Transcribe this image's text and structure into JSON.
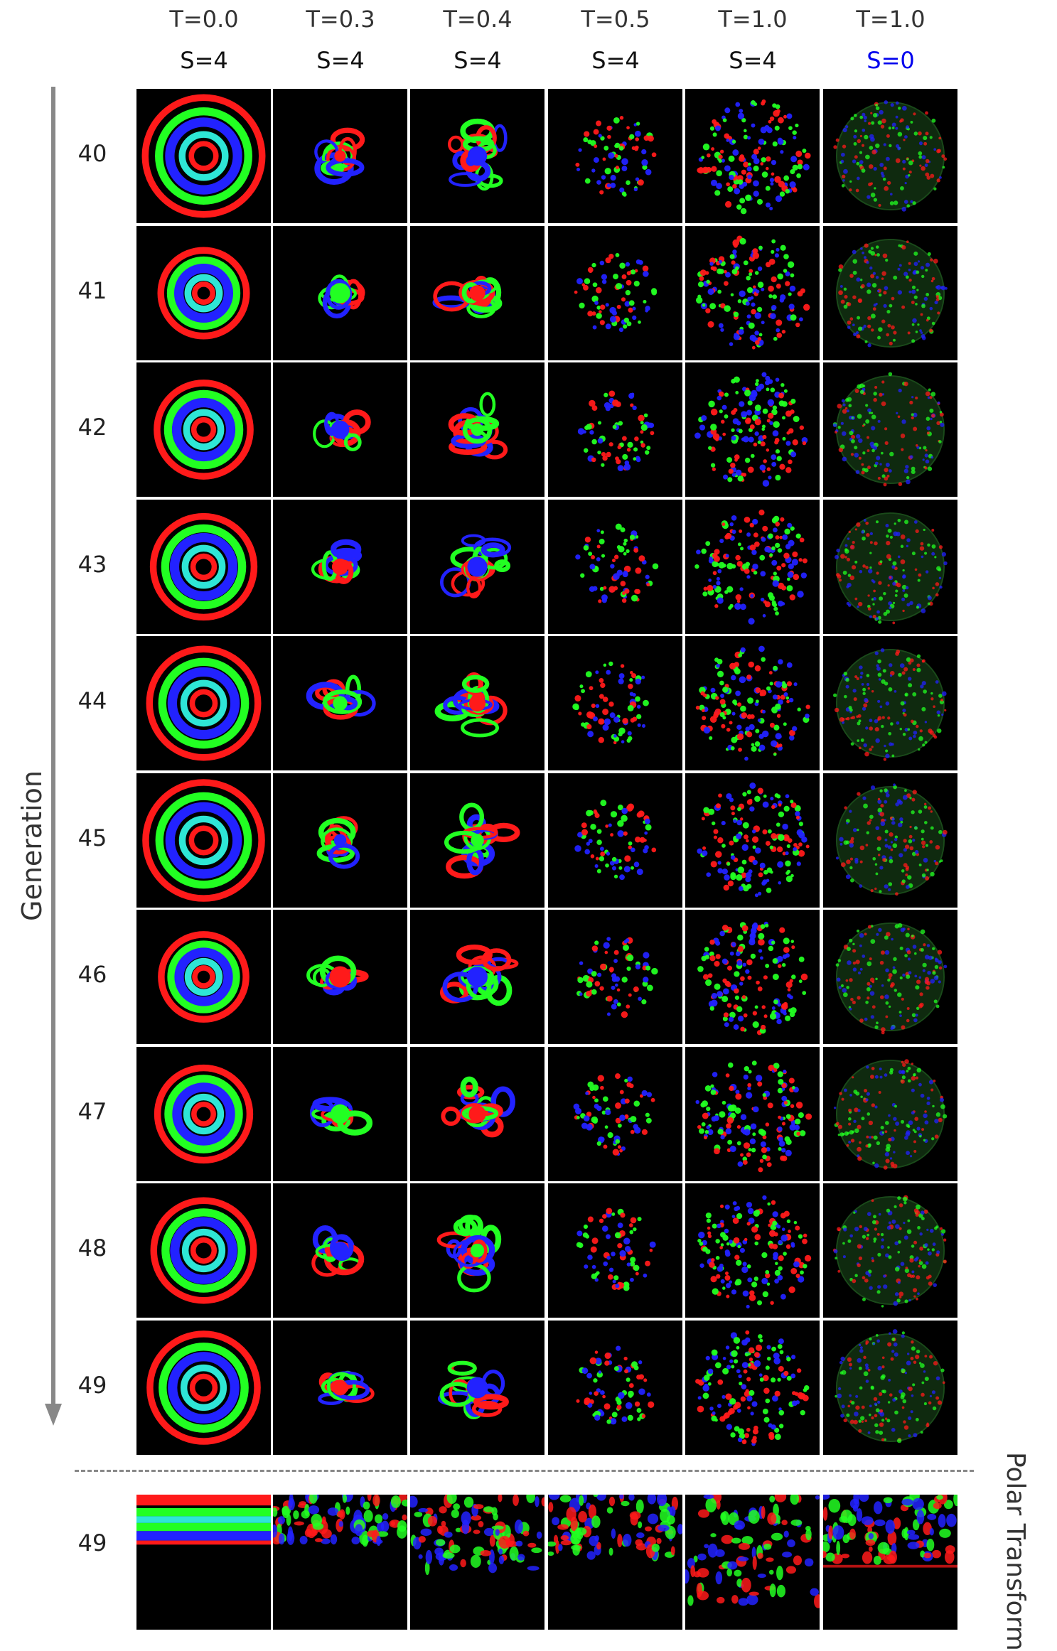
{
  "columns": [
    {
      "temperature": "T=0.0",
      "s_value": "S=4",
      "s_highlight": false
    },
    {
      "temperature": "T=0.3",
      "s_value": "S=4",
      "s_highlight": false
    },
    {
      "temperature": "T=0.4",
      "s_value": "S=4",
      "s_highlight": false
    },
    {
      "temperature": "T=0.5",
      "s_value": "S=4",
      "s_highlight": false
    },
    {
      "temperature": "T=1.0",
      "s_value": "S=4",
      "s_highlight": false
    },
    {
      "temperature": "T=1.0",
      "s_value": "S=0",
      "s_highlight": true
    }
  ],
  "rows": [
    "40",
    "41",
    "42",
    "43",
    "44",
    "45",
    "46",
    "47",
    "48",
    "49"
  ],
  "axis_label": "Generation",
  "polar_row": {
    "label": "49",
    "caption": "Polar Transform"
  },
  "colors": {
    "red": "#ff1a1a",
    "green": "#22ff22",
    "blue": "#2222ff",
    "cyan": "#2ee6d6",
    "magenta": "#e030e0",
    "background": "#000000",
    "highlight": "#0000ee"
  }
}
